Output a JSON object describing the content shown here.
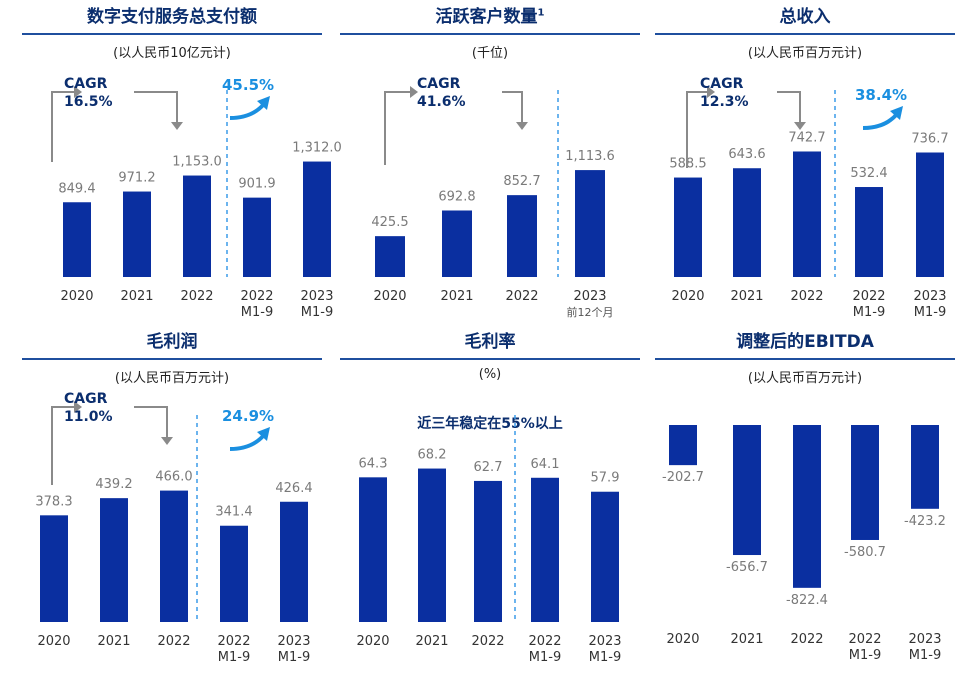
{
  "chart_data": [
    {
      "type": "bar",
      "title": "数字支付服务总支付额",
      "unit": "(以人民币10亿元计)",
      "categories": [
        [
          "2020"
        ],
        [
          "2021"
        ],
        [
          "2022"
        ],
        [
          "2022",
          "M1-9"
        ],
        [
          "2023",
          "M1-9"
        ]
      ],
      "values": [
        849.4,
        971.2,
        1153.0,
        901.9,
        1312.0
      ],
      "labels": [
        "849.4",
        "971.2",
        "1,153.0",
        "901.9",
        "1,312.0"
      ],
      "cagr_label": "CAGR",
      "cagr_value": "16.5%",
      "growth": "45.5%",
      "divider": true
    },
    {
      "type": "bar",
      "title": "活跃客户数量",
      "title_sup": "1",
      "unit": "(千位)",
      "categories": [
        [
          "2020"
        ],
        [
          "2021"
        ],
        [
          "2022"
        ],
        [
          "2023"
        ]
      ],
      "sub_label": "前12个月",
      "values": [
        425.5,
        692.8,
        852.7,
        1113.6
      ],
      "labels": [
        "425.5",
        "692.8",
        "852.7",
        "1,113.6"
      ],
      "cagr_label": "CAGR",
      "cagr_value": "41.6%",
      "divider": true
    },
    {
      "type": "bar",
      "title": "总收入",
      "unit": "(以人民币百万元计)",
      "categories": [
        [
          "2020"
        ],
        [
          "2021"
        ],
        [
          "2022"
        ],
        [
          "2022",
          "M1-9"
        ],
        [
          "2023",
          "M1-9"
        ]
      ],
      "values": [
        588.5,
        643.6,
        742.7,
        532.4,
        736.7
      ],
      "labels": [
        "588.5",
        "643.6",
        "742.7",
        "532.4",
        "736.7"
      ],
      "cagr_label": "CAGR",
      "cagr_value": "12.3%",
      "growth": "38.4%",
      "divider": true
    },
    {
      "type": "bar",
      "title": "毛利润",
      "unit": "(以人民币百万元计)",
      "categories": [
        [
          "2020"
        ],
        [
          "2021"
        ],
        [
          "2022"
        ],
        [
          "2022",
          "M1-9"
        ],
        [
          "2023",
          "M1-9"
        ]
      ],
      "values": [
        378.3,
        439.2,
        466.0,
        341.4,
        426.4
      ],
      "labels": [
        "378.3",
        "439.2",
        "466.0",
        "341.4",
        "426.4"
      ],
      "cagr_label": "CAGR",
      "cagr_value": "11.0%",
      "growth": "24.9%",
      "divider": true
    },
    {
      "type": "bar",
      "title": "毛利率",
      "unit": "(%)",
      "note": "近三年稳定在55%以上",
      "categories": [
        [
          "2020"
        ],
        [
          "2021"
        ],
        [
          "2022"
        ],
        [
          "2022",
          "M1-9"
        ],
        [
          "2023",
          "M1-9"
        ]
      ],
      "values": [
        64.3,
        68.2,
        62.7,
        64.1,
        57.9
      ],
      "labels": [
        "64.3",
        "68.2",
        "62.7",
        "64.1",
        "57.9"
      ],
      "divider": true
    },
    {
      "type": "bar",
      "title": "调整后的EBITDA",
      "unit": "(以人民币百万元计)",
      "categories": [
        [
          "2020"
        ],
        [
          "2021"
        ],
        [
          "2022"
        ],
        [
          "2022",
          "M1-9"
        ],
        [
          "2023",
          "M1-9"
        ]
      ],
      "values": [
        -202.7,
        -656.7,
        -822.4,
        -580.7,
        -423.2
      ],
      "labels": [
        "-202.7",
        "-656.7",
        "-822.4",
        "-580.7",
        "-423.2"
      ],
      "divider": false
    }
  ]
}
